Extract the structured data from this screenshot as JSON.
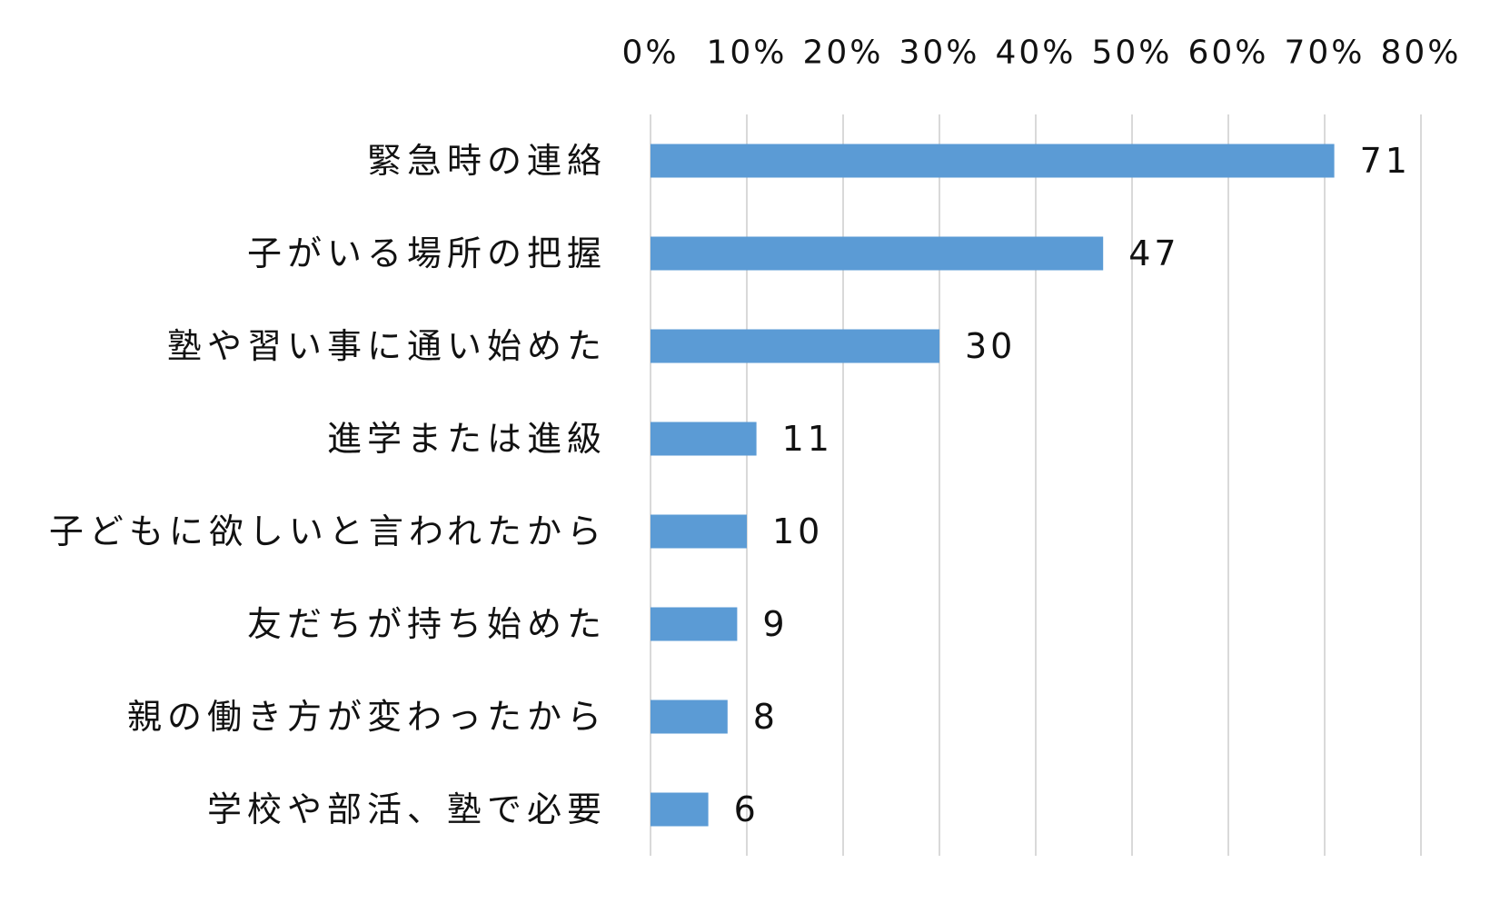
{
  "chart_data": {
    "type": "bar",
    "orientation": "horizontal",
    "categories": [
      "緊急時の連絡",
      "子がいる場所の把握",
      "塾や習い事に通い始めた",
      "進学または進級",
      "子どもに欲しいと言われたから",
      "友だちが持ち始めた",
      "親の働き方が変わったから",
      "学校や部活、塾で必要"
    ],
    "values": [
      71,
      47,
      30,
      11,
      10,
      9,
      8,
      6
    ],
    "data_labels": [
      "71",
      "47",
      "30",
      "11",
      "10",
      "9",
      "8",
      "6"
    ],
    "title": "",
    "xlabel": "",
    "ylabel": "",
    "xlim": [
      0,
      80
    ],
    "x_ticks": [
      0,
      10,
      20,
      30,
      40,
      50,
      60,
      70,
      80
    ],
    "x_tick_labels": [
      "0%",
      "10%",
      "20%",
      "30%",
      "40%",
      "50%",
      "60%",
      "70%",
      "80%"
    ],
    "x_axis_position": "top",
    "grid": "vertical",
    "legend": "none",
    "colors": {
      "bar": "#5b9bd5",
      "grid": "#d9d9d9",
      "text": "#111111"
    }
  }
}
